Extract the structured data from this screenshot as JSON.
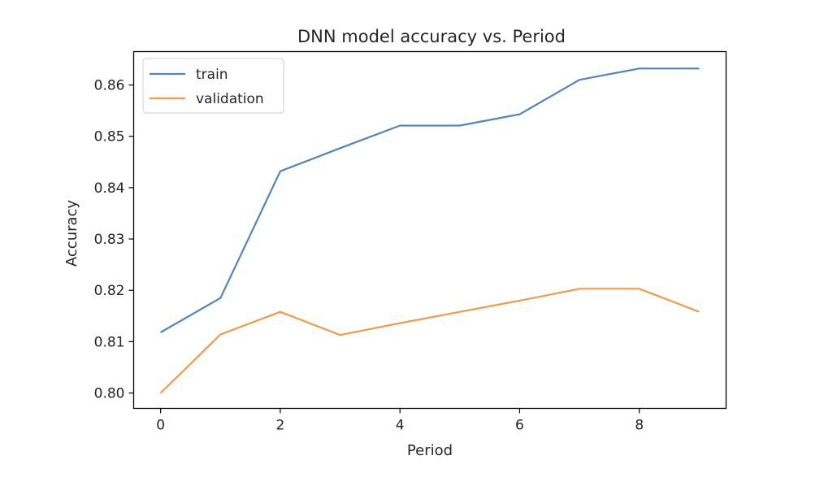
{
  "chart_data": {
    "type": "line",
    "title": "DNN model accuracy vs. Period",
    "xlabel": "Period",
    "ylabel": "Accuracy",
    "x": [
      0,
      1,
      2,
      3,
      4,
      5,
      6,
      7,
      8,
      9
    ],
    "xlim": [
      -0.45,
      9.45
    ],
    "ylim": [
      0.797,
      0.8665
    ],
    "xticks": [
      0,
      2,
      4,
      6,
      8
    ],
    "xtick_labels": [
      "0",
      "2",
      "4",
      "6",
      "8"
    ],
    "yticks": [
      0.8,
      0.81,
      0.82,
      0.83,
      0.84,
      0.85,
      0.86
    ],
    "ytick_labels": [
      "0.80",
      "0.81",
      "0.82",
      "0.83",
      "0.84",
      "0.85",
      "0.86"
    ],
    "grid": false,
    "legend": "upper-left",
    "series": [
      {
        "name": "train",
        "color": "#4f86c0",
        "values": [
          0.8118,
          0.8185,
          0.8432,
          0.8477,
          0.8521,
          0.8521,
          0.8543,
          0.861,
          0.8632,
          0.8632
        ]
      },
      {
        "name": "validation",
        "color": "#f59a44",
        "values": [
          0.8,
          0.8114,
          0.8158,
          0.8113,
          0.8136,
          0.8158,
          0.818,
          0.8203,
          0.8203,
          0.8158
        ]
      }
    ]
  }
}
